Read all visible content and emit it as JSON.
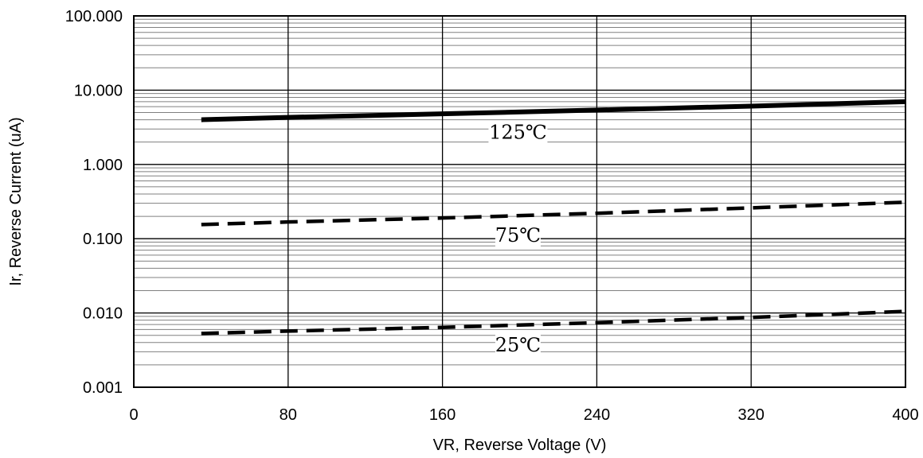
{
  "chart_data": {
    "type": "line",
    "xlabel": "VR, Reverse Voltage (V)",
    "ylabel": "Ir, Reverse Current (uA)",
    "xlim": [
      0,
      400
    ],
    "ylim": [
      0.001,
      100
    ],
    "yscale": "log",
    "grid": true,
    "x_ticks": [
      "0",
      "80",
      "160",
      "240",
      "320",
      "400"
    ],
    "y_ticks": [
      "0.001",
      "0.010",
      "0.100",
      "1.000",
      "10.000",
      "100.000"
    ],
    "series": [
      {
        "name": "125℃",
        "style": "solid",
        "x": [
          35,
          80,
          160,
          240,
          320,
          400
        ],
        "y": [
          4.0,
          4.3,
          4.8,
          5.4,
          6.1,
          7.0
        ]
      },
      {
        "name": "75℃",
        "style": "dashed",
        "x": [
          35,
          80,
          160,
          240,
          320,
          400
        ],
        "y": [
          0.155,
          0.168,
          0.19,
          0.22,
          0.26,
          0.31
        ]
      },
      {
        "name": "25℃",
        "style": "dashed",
        "x": [
          35,
          80,
          160,
          240,
          320,
          400
        ],
        "y": [
          0.0053,
          0.0057,
          0.0064,
          0.0074,
          0.0087,
          0.0105
        ]
      }
    ],
    "colors": {
      "line": "#000000",
      "major_grid": "#000000",
      "minor_grid": "#808080"
    }
  }
}
